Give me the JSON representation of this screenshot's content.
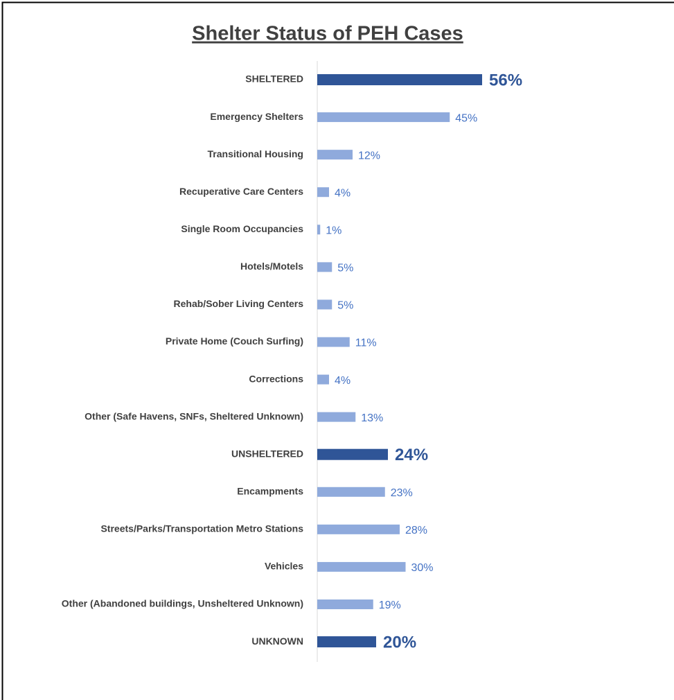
{
  "chart_data": {
    "type": "hbar",
    "title": "Shelter Status of PEH Cases",
    "categories": [
      "SHELTERED",
      "Emergency Shelters",
      "Transitional Housing",
      "Recuperative Care Centers",
      "Single Room Occupancies",
      "Hotels/Motels",
      "Rehab/Sober Living Centers",
      "Private Home (Couch Surfing)",
      "Corrections",
      "Other (Safe Havens, SNFs, Sheltered Unknown)",
      "UNSHELTERED",
      "Encampments",
      "Streets/Parks/Transportation Metro Stations",
      "Vehicles",
      "Other (Abandoned buildings, Unsheltered Unknown)",
      "UNKNOWN"
    ],
    "values": [
      56,
      45,
      12,
      4,
      1,
      5,
      5,
      11,
      4,
      13,
      24,
      23,
      28,
      30,
      19,
      20
    ],
    "value_labels": [
      "56%",
      "45%",
      "12%",
      "4%",
      "1%",
      "5%",
      "5%",
      "11%",
      "4%",
      "13%",
      "24%",
      "23%",
      "28%",
      "30%",
      "19%",
      "20%"
    ],
    "colors": [
      "#2f5597",
      "#8faadc",
      "#8faadc",
      "#8faadc",
      "#8faadc",
      "#8faadc",
      "#8faadc",
      "#8faadc",
      "#8faadc",
      "#8faadc",
      "#2f5597",
      "#8faadc",
      "#8faadc",
      "#8faadc",
      "#8faadc",
      "#2f5597"
    ],
    "bold": [
      true,
      false,
      false,
      false,
      false,
      false,
      false,
      false,
      false,
      false,
      true,
      false,
      false,
      false,
      false,
      true
    ],
    "xlim": [
      0,
      100
    ]
  }
}
